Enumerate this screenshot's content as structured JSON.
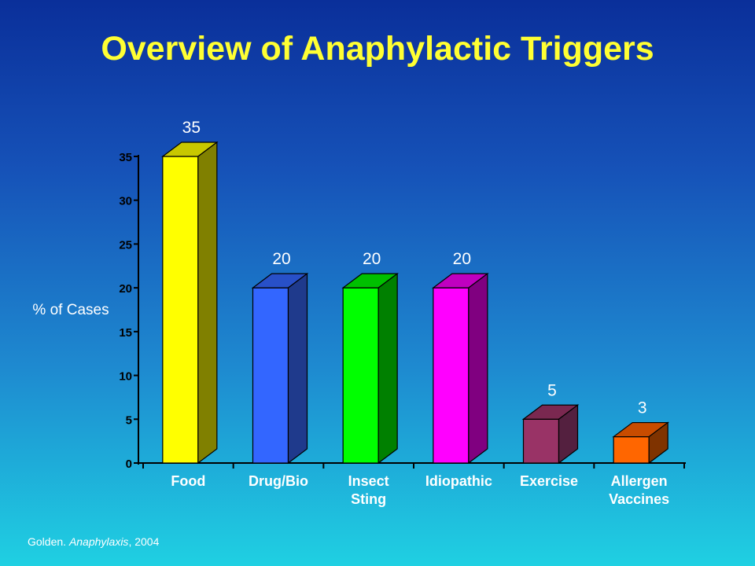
{
  "title": "Overview of Anaphylactic Triggers",
  "source": {
    "author": "Golden.",
    "work": "Anaphylaxis",
    "year": ", 2004"
  },
  "chart_data": {
    "type": "bar",
    "title": "Overview of Anaphylactic Triggers",
    "ylabel": "% of Cases",
    "xlabel": "",
    "ylim": [
      0,
      35
    ],
    "yticks": [
      0,
      5,
      10,
      15,
      20,
      25,
      30,
      35
    ],
    "categories": [
      [
        "Food"
      ],
      [
        "Drug/Bio"
      ],
      [
        "Insect",
        "Sting"
      ],
      [
        "Idiopathic"
      ],
      [
        "Exercise"
      ],
      [
        "Allergen",
        "Vaccines"
      ]
    ],
    "values": [
      35,
      20,
      20,
      20,
      5,
      3
    ],
    "data_labels": [
      "35",
      "20",
      "20",
      "20",
      "5",
      "3"
    ],
    "colors": [
      {
        "front": "#ffff00",
        "top": "#c8c800",
        "side": "#808000"
      },
      {
        "front": "#3366ff",
        "top": "#2850c8",
        "side": "#1f3a8c"
      },
      {
        "front": "#00ff00",
        "top": "#00c000",
        "side": "#008000"
      },
      {
        "front": "#ff00ff",
        "top": "#c000c0",
        "side": "#800080"
      },
      {
        "front": "#993366",
        "top": "#7a2850",
        "side": "#54203f"
      },
      {
        "front": "#ff6600",
        "top": "#c84c00",
        "side": "#7f3300"
      }
    ],
    "grid": false,
    "style": "3d"
  }
}
